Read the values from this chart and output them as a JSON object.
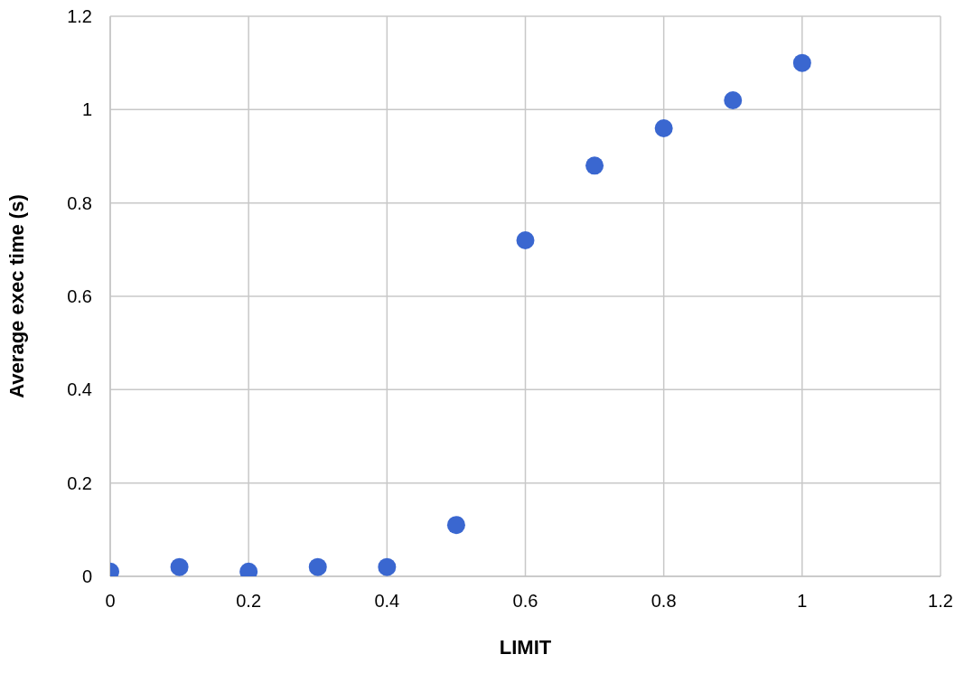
{
  "chart_data": {
    "type": "scatter",
    "xlabel": "LIMIT",
    "ylabel": "Average exec time (s)",
    "x": [
      0,
      0.1,
      0.2,
      0.3,
      0.4,
      0.5,
      0.6,
      0.7,
      0.8,
      0.9,
      1
    ],
    "series": [
      {
        "color": "#3a67d0",
        "values": [
          0.01,
          0.02,
          0.01,
          0.02,
          0.02,
          0.11,
          0.72,
          0.88,
          0.96,
          1.02,
          1.1
        ]
      }
    ],
    "xlim": [
      0,
      1.2
    ],
    "xticks": [
      0,
      0.2,
      0.4,
      0.6,
      0.8,
      1,
      1.2
    ],
    "ylim": [
      0,
      1.2
    ],
    "yticks": [
      0,
      0.2,
      0.4,
      0.6,
      0.8,
      1,
      1.2
    ],
    "grid": true,
    "marker": "circle"
  }
}
